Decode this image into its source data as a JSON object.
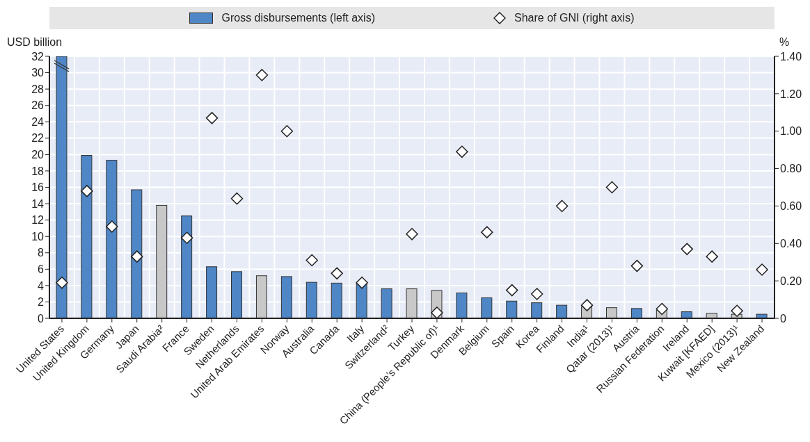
{
  "chart_data": {
    "type": "bar",
    "ylabel": "USD billion",
    "y2label": "%",
    "categories": [
      "United States",
      "United Kingdom",
      "Germany",
      "Japan",
      "Saudi Arabia²",
      "France",
      "Sweden",
      "Netherlands",
      "United Arab Emirates",
      "Norway",
      "Australia",
      "Canada",
      "Italy",
      "Switzerland²",
      "Turkey",
      "China (People’s Republic of)¹",
      "Denmark",
      "Belgium",
      "Spain",
      "Korea",
      "Finland",
      "India¹",
      "Qatar (2013)¹",
      "Austria",
      "Russian Federation",
      "Ireland",
      "Kuwait [KFAED]",
      "Mexico (2013)¹",
      "New Zealand"
    ],
    "series": [
      {
        "name": "Gross disbursements (left axis)",
        "color": "#4e86c6",
        "colors": [
          "#4e86c6",
          "#4e86c6",
          "#4e86c6",
          "#4e86c6",
          "#c8c8c8",
          "#4e86c6",
          "#4e86c6",
          "#4e86c6",
          "#c8c8c8",
          "#4e86c6",
          "#4e86c6",
          "#4e86c6",
          "#4e86c6",
          "#4e86c6",
          "#c8c8c8",
          "#c8c8c8",
          "#4e86c6",
          "#4e86c6",
          "#4e86c6",
          "#4e86c6",
          "#4e86c6",
          "#c8c8c8",
          "#c8c8c8",
          "#4e86c6",
          "#c8c8c8",
          "#4e86c6",
          "#c8c8c8",
          "#c8c8c8",
          "#4e86c6"
        ],
        "values": [
          32,
          19.9,
          19.3,
          15.7,
          13.8,
          12.5,
          6.3,
          5.7,
          5.2,
          5.1,
          4.4,
          4.3,
          4.2,
          3.6,
          3.6,
          3.4,
          3.1,
          2.5,
          2.1,
          1.9,
          1.6,
          1.4,
          1.3,
          1.2,
          1.0,
          0.8,
          0.6,
          0.5,
          0.5
        ]
      },
      {
        "name": "Share of GNI (right axis)",
        "type": "scatter",
        "axis": "y2",
        "color": "#ffffff",
        "values": [
          0.19,
          0.68,
          0.49,
          0.33,
          null,
          0.43,
          1.07,
          0.64,
          1.3,
          1.0,
          0.31,
          0.24,
          0.19,
          null,
          0.45,
          0.03,
          0.89,
          0.46,
          0.15,
          0.13,
          0.6,
          0.07,
          0.7,
          0.28,
          0.05,
          0.37,
          0.33,
          0.04,
          0.26
        ]
      }
    ],
    "ylim": [
      0,
      32
    ],
    "yticks": [
      0,
      2,
      4,
      6,
      8,
      10,
      12,
      14,
      16,
      18,
      20,
      22,
      24,
      26,
      28,
      30,
      32
    ],
    "y2lim": [
      0,
      1.4
    ],
    "y2ticks": [
      {
        "value": 0,
        "label": "0"
      },
      {
        "value": 0.2,
        "label": "0.20"
      },
      {
        "value": 0.4,
        "label": "0.40"
      },
      {
        "value": 0.6,
        "label": "0.60"
      },
      {
        "value": 0.8,
        "label": "0.80"
      },
      {
        "value": 1.0,
        "label": "1.00"
      },
      {
        "value": 1.2,
        "label": "1.20"
      },
      {
        "value": 1.4,
        "label": "1.40"
      }
    ],
    "grid": true,
    "legend": "top",
    "marker": "diamond"
  }
}
